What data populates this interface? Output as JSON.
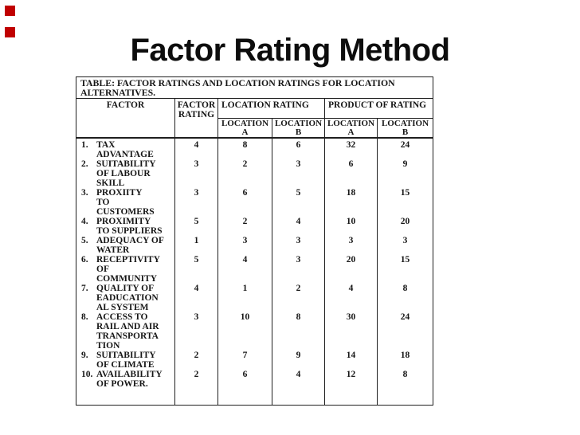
{
  "slide": {
    "title": "Factor Rating Method"
  },
  "colors": {
    "background": "#ffffff",
    "text": "#151515",
    "border": "#1f1f1f",
    "accent_red": "#c00000"
  },
  "decorations": {
    "red_square_count": 2
  },
  "table": {
    "caption": "TABLE: FACTOR RATINGS AND LOCATION RATINGS FOR LOCATION\nALTERNATIVES.",
    "headers": {
      "factor": "FACTOR",
      "factor_rating": "FACTOR\nRATING",
      "location_rating": "LOCATION RATING",
      "product_of_rating": "PRODUCT OF RATING"
    },
    "sub_headers": [
      "LOCATION\nA",
      "LOCATION\nB",
      "LOCATION\nA",
      "LOCATION\nB"
    ],
    "rows": [
      {
        "num": "1.",
        "factor": "TAX\nADVANTAGE",
        "factor_rating": "4",
        "location_a": "8",
        "location_b": "6",
        "product_a": "32",
        "product_b": "24"
      },
      {
        "num": "2.",
        "factor": "SUITABILITY\nOF LABOUR\nSKILL",
        "factor_rating": "3",
        "location_a": "2",
        "location_b": "3",
        "product_a": "6",
        "product_b": "9"
      },
      {
        "num": "3.",
        "factor": "PROXIITY\nTO\nCUSTOMERS",
        "factor_rating": "3",
        "location_a": "6",
        "location_b": "5",
        "product_a": "18",
        "product_b": "15"
      },
      {
        "num": "4.",
        "factor": "PROXIMITY\nTO SUPPLIERS",
        "factor_rating": "5",
        "location_a": "2",
        "location_b": "4",
        "product_a": "10",
        "product_b": "20"
      },
      {
        "num": "5.",
        "factor": "ADEQUACY OF\nWATER",
        "factor_rating": "1",
        "location_a": "3",
        "location_b": "3",
        "product_a": "3",
        "product_b": "3"
      },
      {
        "num": "6.",
        "factor": "RECEPTIVITY\nOF\nCOMMUNITY",
        "factor_rating": "5",
        "location_a": "4",
        "location_b": "3",
        "product_a": "20",
        "product_b": "15"
      },
      {
        "num": "7.",
        "factor": "QUALITY OF\nEADUCATION\nAL SYSTEM",
        "factor_rating": "4",
        "location_a": "1",
        "location_b": "2",
        "product_a": "4",
        "product_b": "8"
      },
      {
        "num": "8.",
        "factor": "ACCESS TO\nRAIL AND AIR\nTRANSPORTA\nTION",
        "factor_rating": "3",
        "location_a": "10",
        "location_b": "8",
        "product_a": "30",
        "product_b": "24"
      },
      {
        "num": "9.",
        "factor": "SUITABILITY\nOF CLIMATE",
        "factor_rating": "2",
        "location_a": "7",
        "location_b": "9",
        "product_a": "14",
        "product_b": "18"
      },
      {
        "num": "10.",
        "factor": "AVAILABILITY\nOF POWER.",
        "factor_rating": "2",
        "location_a": "6",
        "location_b": "4",
        "product_a": "12",
        "product_b": "8"
      }
    ]
  }
}
